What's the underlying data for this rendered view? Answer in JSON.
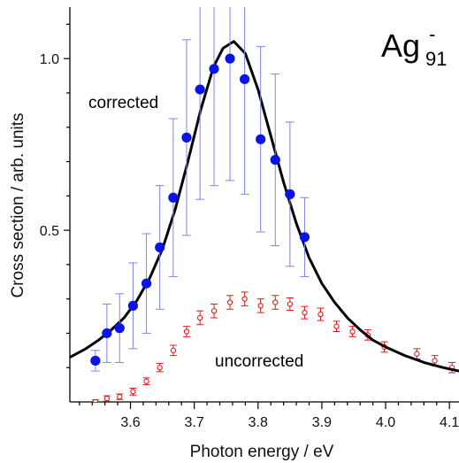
{
  "chart_data": {
    "type": "scatter",
    "title": "",
    "species_label": {
      "base": "Ag",
      "subscript": "91",
      "superscript": "-"
    },
    "xlabel": "Photon energy / eV",
    "ylabel": "Cross section / arb. units",
    "xlim": [
      3.505,
      4.115
    ],
    "ylim": [
      0.0,
      1.15
    ],
    "x_ticks": [
      3.6,
      3.7,
      3.8,
      3.9,
      4.0,
      4.1
    ],
    "x_tick_labels": [
      "3.6",
      "3.7",
      "3.8",
      "3.9",
      "4.0",
      "4.1"
    ],
    "y_ticks": [
      0.5,
      1.0
    ],
    "y_tick_labels": [
      "0.5",
      "1.0"
    ],
    "grid": false,
    "legend": "none",
    "annotations": [
      "corrected",
      "uncorrected"
    ],
    "colors": {
      "corrected": "#0a14e6",
      "corrected_errorbar": "#7c84ee",
      "uncorrected": "#e01818",
      "fit": "#000000"
    },
    "series": [
      {
        "name": "corrected",
        "marker": "filled-circle",
        "points": [
          {
            "x": 3.545,
            "y": 0.12,
            "err": 0.03
          },
          {
            "x": 3.563,
            "y": 0.2,
            "err": 0.085
          },
          {
            "x": 3.583,
            "y": 0.215,
            "err": 0.1
          },
          {
            "x": 3.604,
            "y": 0.28,
            "err": 0.125
          },
          {
            "x": 3.625,
            "y": 0.345,
            "err": 0.145
          },
          {
            "x": 3.646,
            "y": 0.45,
            "err": 0.18
          },
          {
            "x": 3.667,
            "y": 0.595,
            "err": 0.23
          },
          {
            "x": 3.688,
            "y": 0.77,
            "err": 0.285
          },
          {
            "x": 3.709,
            "y": 0.91,
            "err": 0.32
          },
          {
            "x": 3.731,
            "y": 0.97,
            "err": 0.34
          },
          {
            "x": 3.756,
            "y": 1.0,
            "err": 0.355
          },
          {
            "x": 3.779,
            "y": 0.94,
            "err": 0.335
          },
          {
            "x": 3.804,
            "y": 0.765,
            "err": 0.27
          },
          {
            "x": 3.827,
            "y": 0.705,
            "err": 0.25
          },
          {
            "x": 3.85,
            "y": 0.605,
            "err": 0.21
          },
          {
            "x": 3.873,
            "y": 0.48,
            "err": 0.115
          }
        ]
      },
      {
        "name": "uncorrected",
        "marker": "open-circle",
        "points": [
          {
            "x": 3.545,
            "y": 0.0,
            "err": 0.006
          },
          {
            "x": 3.563,
            "y": 0.01,
            "err": 0.008
          },
          {
            "x": 3.583,
            "y": 0.015,
            "err": 0.008
          },
          {
            "x": 3.604,
            "y": 0.03,
            "err": 0.01
          },
          {
            "x": 3.625,
            "y": 0.06,
            "err": 0.01
          },
          {
            "x": 3.646,
            "y": 0.1,
            "err": 0.012
          },
          {
            "x": 3.667,
            "y": 0.15,
            "err": 0.015
          },
          {
            "x": 3.688,
            "y": 0.205,
            "err": 0.015
          },
          {
            "x": 3.709,
            "y": 0.245,
            "err": 0.02
          },
          {
            "x": 3.731,
            "y": 0.265,
            "err": 0.02
          },
          {
            "x": 3.756,
            "y": 0.29,
            "err": 0.02
          },
          {
            "x": 3.779,
            "y": 0.3,
            "err": 0.02
          },
          {
            "x": 3.804,
            "y": 0.28,
            "err": 0.02
          },
          {
            "x": 3.827,
            "y": 0.29,
            "err": 0.02
          },
          {
            "x": 3.85,
            "y": 0.285,
            "err": 0.018
          },
          {
            "x": 3.873,
            "y": 0.26,
            "err": 0.018
          },
          {
            "x": 3.898,
            "y": 0.255,
            "err": 0.018
          },
          {
            "x": 3.923,
            "y": 0.22,
            "err": 0.015
          },
          {
            "x": 3.948,
            "y": 0.205,
            "err": 0.015
          },
          {
            "x": 3.972,
            "y": 0.195,
            "err": 0.015
          },
          {
            "x": 3.998,
            "y": 0.16,
            "err": 0.015
          },
          {
            "x": 4.049,
            "y": 0.14,
            "err": 0.015
          },
          {
            "x": 4.077,
            "y": 0.12,
            "err": 0.015
          },
          {
            "x": 4.104,
            "y": 0.1,
            "err": 0.015
          }
        ]
      },
      {
        "name": "fit",
        "line": "solid",
        "points": [
          {
            "x": 3.505,
            "y": 0.13
          },
          {
            "x": 3.53,
            "y": 0.155
          },
          {
            "x": 3.55,
            "y": 0.18
          },
          {
            "x": 3.57,
            "y": 0.21
          },
          {
            "x": 3.59,
            "y": 0.245
          },
          {
            "x": 3.61,
            "y": 0.295
          },
          {
            "x": 3.63,
            "y": 0.36
          },
          {
            "x": 3.65,
            "y": 0.445
          },
          {
            "x": 3.67,
            "y": 0.56
          },
          {
            "x": 3.69,
            "y": 0.7
          },
          {
            "x": 3.71,
            "y": 0.85
          },
          {
            "x": 3.73,
            "y": 0.975
          },
          {
            "x": 3.745,
            "y": 1.03
          },
          {
            "x": 3.762,
            "y": 1.05
          },
          {
            "x": 3.78,
            "y": 1.015
          },
          {
            "x": 3.8,
            "y": 0.91
          },
          {
            "x": 3.82,
            "y": 0.775
          },
          {
            "x": 3.84,
            "y": 0.64
          },
          {
            "x": 3.86,
            "y": 0.52
          },
          {
            "x": 3.88,
            "y": 0.42
          },
          {
            "x": 3.9,
            "y": 0.345
          },
          {
            "x": 3.92,
            "y": 0.29
          },
          {
            "x": 3.94,
            "y": 0.245
          },
          {
            "x": 3.96,
            "y": 0.21
          },
          {
            "x": 3.98,
            "y": 0.18
          },
          {
            "x": 4.0,
            "y": 0.16
          },
          {
            "x": 4.03,
            "y": 0.135
          },
          {
            "x": 4.06,
            "y": 0.115
          },
          {
            "x": 4.09,
            "y": 0.1
          },
          {
            "x": 4.115,
            "y": 0.09
          }
        ]
      }
    ]
  }
}
